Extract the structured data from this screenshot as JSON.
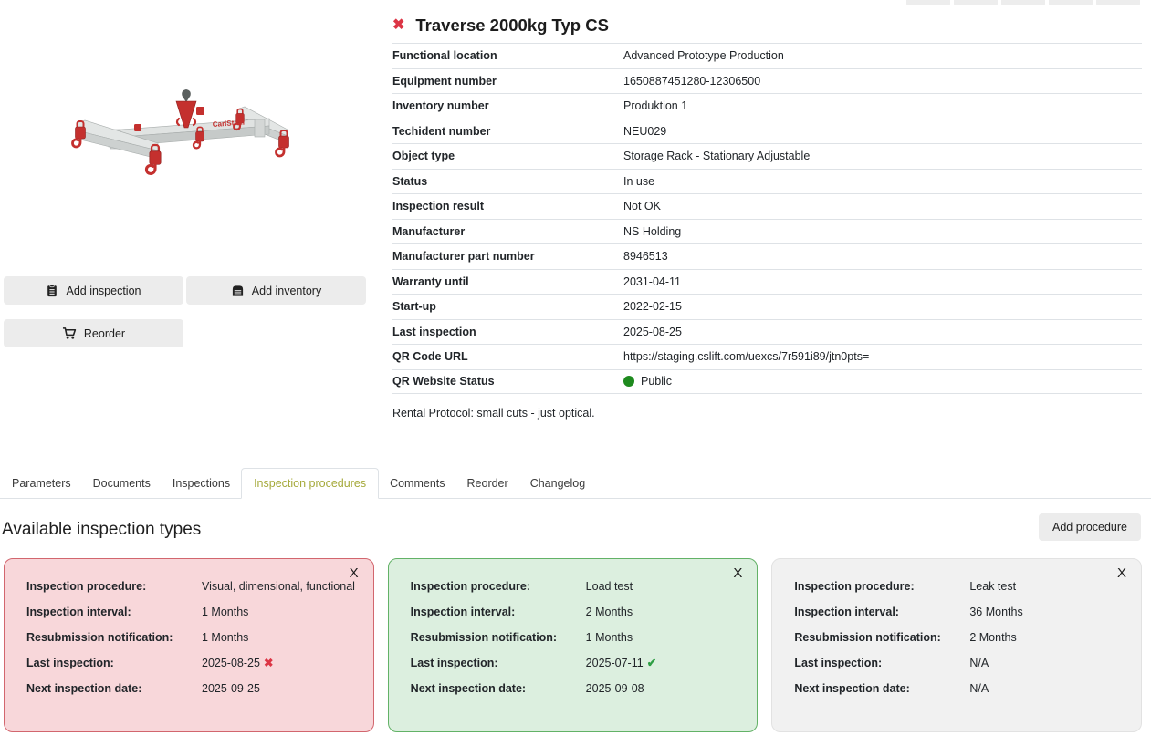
{
  "colors": {
    "accent_red": "#dc3545",
    "success_green": "#2e9e44",
    "status_public_green": "#1e8a1e",
    "tab_active": "#a5a93a",
    "card_danger_bg": "#f8d7da",
    "card_danger_border": "#d2666e",
    "card_success_bg": "#dcefdf",
    "card_success_border": "#63b267",
    "card_neutral_bg": "#f1f1f1",
    "card_neutral_border": "#e2e2e2"
  },
  "header": {
    "title": "Traverse 2000kg Typ CS"
  },
  "product_image": {
    "brand": "CarlStahl"
  },
  "actions": {
    "add_inspection": "Add inspection",
    "add_inventory": "Add inventory",
    "reorder": "Reorder"
  },
  "details": {
    "rows": [
      {
        "label": "Functional location",
        "value": "Advanced Prototype Production"
      },
      {
        "label": "Equipment number",
        "value": "1650887451280-12306500"
      },
      {
        "label": "Inventory number",
        "value": "Produktion 1"
      },
      {
        "label": "Techident number",
        "value": "NEU029"
      },
      {
        "label": "Object type",
        "value": "Storage Rack - Stationary Adjustable"
      },
      {
        "label": "Status",
        "value": "In use"
      },
      {
        "label": "Inspection result",
        "value": "Not OK"
      },
      {
        "label": "Manufacturer",
        "value": "NS Holding"
      },
      {
        "label": "Manufacturer part number",
        "value": "8946513"
      },
      {
        "label": "Warranty until",
        "value": "2031-04-11"
      },
      {
        "label": "Start-up",
        "value": "2022-02-15"
      },
      {
        "label": "Last inspection",
        "value": "2025-08-25"
      },
      {
        "label": "QR Code URL",
        "value": "https://staging.cslift.com/uexcs/7r591i89/jtn0pts="
      },
      {
        "label": "QR Website Status",
        "value": "Public",
        "dot": true
      }
    ]
  },
  "rental_note": "Rental Protocol: small cuts - just optical.",
  "tabs": [
    {
      "label": "Parameters",
      "active": false
    },
    {
      "label": "Documents",
      "active": false
    },
    {
      "label": "Inspections",
      "active": false
    },
    {
      "label": "Inspection procedures",
      "active": true
    },
    {
      "label": "Comments",
      "active": false
    },
    {
      "label": "Reorder",
      "active": false
    },
    {
      "label": "Changelog",
      "active": false
    }
  ],
  "section": {
    "heading": "Available inspection types",
    "add_procedure_label": "Add procedure"
  },
  "cards": [
    {
      "variant": "danger",
      "close_label": "X",
      "rows": [
        {
          "label": "Inspection procedure:",
          "value": "Visual, dimensional, functional"
        },
        {
          "label": "Inspection interval:",
          "value": "1 Months"
        },
        {
          "label": "Resubmission notification:",
          "value": "1 Months"
        },
        {
          "label": "Last inspection:",
          "value": "2025-08-25",
          "marker": "fail"
        },
        {
          "label": "Next inspection date:",
          "value": "2025-09-25"
        }
      ]
    },
    {
      "variant": "success",
      "close_label": "X",
      "rows": [
        {
          "label": "Inspection procedure:",
          "value": "Load test"
        },
        {
          "label": "Inspection interval:",
          "value": "2 Months"
        },
        {
          "label": "Resubmission notification:",
          "value": "1 Months"
        },
        {
          "label": "Last inspection:",
          "value": "2025-07-11",
          "marker": "pass"
        },
        {
          "label": "Next inspection date:",
          "value": "2025-09-08"
        }
      ]
    },
    {
      "variant": "neutral",
      "close_label": "X",
      "rows": [
        {
          "label": "Inspection procedure:",
          "value": "Leak test"
        },
        {
          "label": "Inspection interval:",
          "value": "36 Months"
        },
        {
          "label": "Resubmission notification:",
          "value": "2 Months"
        },
        {
          "label": "Last inspection:",
          "value": "N/A"
        },
        {
          "label": "Next inspection date:",
          "value": "N/A"
        }
      ]
    }
  ],
  "markers": {
    "fail": "✖",
    "pass": "✔"
  }
}
